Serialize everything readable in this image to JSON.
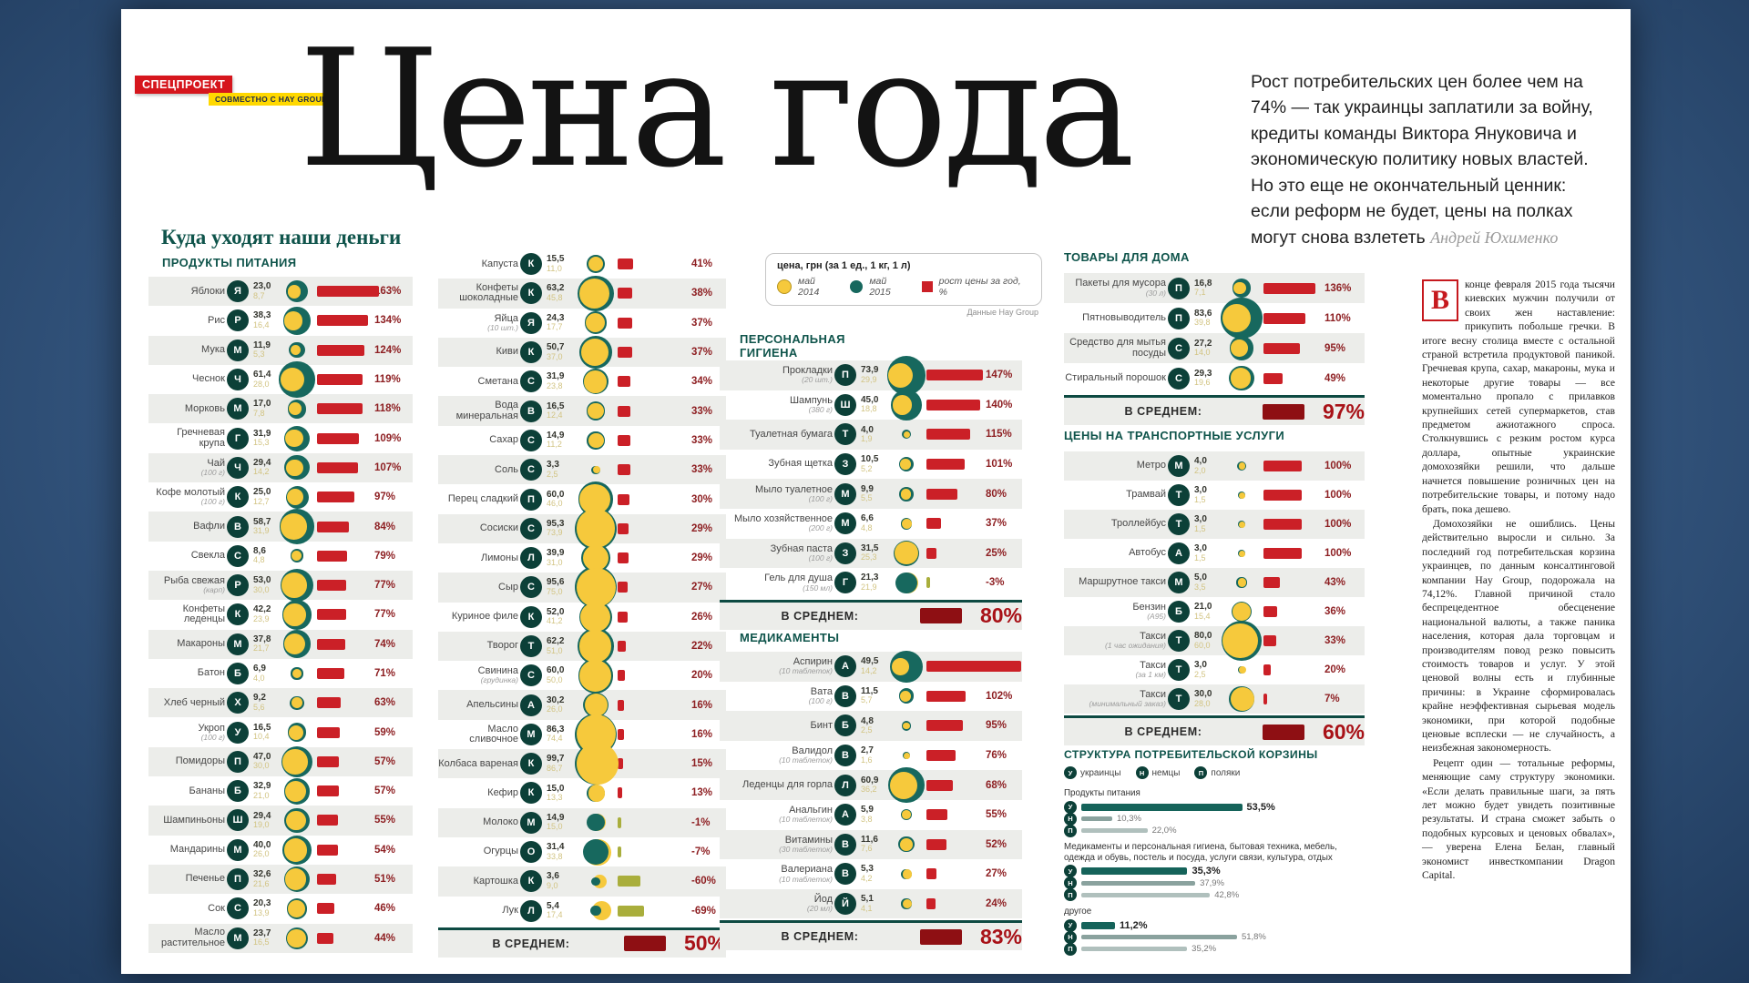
{
  "header": {
    "badge1": "СПЕЦПРОЕКТ",
    "badge2": "СОВМЕСТНО С HAY GROUP",
    "title": "Цена года"
  },
  "lead": {
    "text": "Рост потребительских цен более чем на 74% — так украинцы заплатили за войну, кредиты команды Виктора Януковича и экономическую политику новых властей. Но это еще не окончательный ценник: если реформ не будет, цены на полках могут снова взлететь",
    "byline": "Андрей Юхименко"
  },
  "main_heading": "Куда уходят наши деньги",
  "avg_label": "В СРЕДНЕМ:",
  "source_note": "Данные Hay Group",
  "legend": {
    "price_label": "цена, грн (за 1 ед., 1 кг, 1 л)",
    "may2014": "май 2014",
    "may2015": "май 2015",
    "growth": "рост цены за год, %"
  },
  "colors": {
    "accent_red": "#cb2027",
    "dark_red": "#8e0f13",
    "teal": "#17685e",
    "dark_teal": "#0c4038",
    "yellow": "#f6c93c",
    "olive_negative": "#a9ae3c",
    "heading_teal": "#0f544b"
  },
  "chart_data": [
    {
      "type": "bar",
      "title": "ПРОДУКТЫ ПИТАНИЯ",
      "unit": "грн",
      "series_labels": [
        "май 2014",
        "май 2015",
        "рост цены за год, %"
      ],
      "average_growth_pct": 50,
      "columns": [
        [
          {
            "name": "Яблоки",
            "note": "",
            "may2014": 8.7,
            "may2015": 23.0,
            "growth": 163
          },
          {
            "name": "Рис",
            "note": "",
            "may2014": 16.4,
            "may2015": 38.3,
            "growth": 134
          },
          {
            "name": "Мука",
            "note": "",
            "may2014": 5.3,
            "may2015": 11.9,
            "growth": 124
          },
          {
            "name": "Чеснок",
            "note": "",
            "may2014": 28.0,
            "may2015": 61.4,
            "growth": 119
          },
          {
            "name": "Морковь",
            "note": "",
            "may2014": 7.8,
            "may2015": 17.0,
            "growth": 118
          },
          {
            "name": "Гречневая крупа",
            "note": "",
            "may2014": 15.3,
            "may2015": 31.9,
            "growth": 109
          },
          {
            "name": "Чай",
            "note": "(100 г)",
            "may2014": 14.2,
            "may2015": 29.4,
            "growth": 107
          },
          {
            "name": "Кофе молотый",
            "note": "(100 г)",
            "may2014": 12.7,
            "may2015": 25.0,
            "growth": 97
          },
          {
            "name": "Вафли",
            "note": "",
            "may2014": 31.9,
            "may2015": 58.7,
            "growth": 84
          },
          {
            "name": "Свекла",
            "note": "",
            "may2014": 4.8,
            "may2015": 8.6,
            "growth": 79
          },
          {
            "name": "Рыба свежая",
            "note": "(карп)",
            "may2014": 30.0,
            "may2015": 53.0,
            "growth": 77
          },
          {
            "name": "Конфеты леденцы",
            "note": "",
            "may2014": 23.9,
            "may2015": 42.2,
            "growth": 77
          },
          {
            "name": "Макароны",
            "note": "",
            "may2014": 21.7,
            "may2015": 37.8,
            "growth": 74
          },
          {
            "name": "Батон",
            "note": "",
            "may2014": 4.0,
            "may2015": 6.9,
            "growth": 71
          },
          {
            "name": "Хлеб черный",
            "note": "",
            "may2014": 5.6,
            "may2015": 9.2,
            "growth": 63
          },
          {
            "name": "Укроп",
            "note": "(100 г)",
            "may2014": 10.4,
            "may2015": 16.5,
            "growth": 59
          },
          {
            "name": "Помидоры",
            "note": "",
            "may2014": 30.0,
            "may2015": 47.0,
            "growth": 57
          },
          {
            "name": "Бананы",
            "note": "",
            "may2014": 21.0,
            "may2015": 32.9,
            "growth": 57
          },
          {
            "name": "Шампиньоны",
            "note": "",
            "may2014": 19.0,
            "may2015": 29.4,
            "growth": 55
          },
          {
            "name": "Мандарины",
            "note": "",
            "may2014": 26.0,
            "may2015": 40.0,
            "growth": 54
          },
          {
            "name": "Печенье",
            "note": "",
            "may2014": 21.6,
            "may2015": 32.6,
            "growth": 51
          },
          {
            "name": "Сок",
            "note": "",
            "may2014": 13.9,
            "may2015": 20.3,
            "growth": 46
          },
          {
            "name": "Масло растительное",
            "note": "",
            "may2014": 16.5,
            "may2015": 23.7,
            "growth": 44
          }
        ],
        [
          {
            "name": "Капуста",
            "note": "",
            "may2014": 11.0,
            "may2015": 15.5,
            "growth": 41
          },
          {
            "name": "Конфеты шоколадные",
            "note": "",
            "may2014": 45.8,
            "may2015": 63.2,
            "growth": 38
          },
          {
            "name": "Яйца",
            "note": "(10 шт.)",
            "may2014": 17.7,
            "may2015": 24.3,
            "growth": 37
          },
          {
            "name": "Киви",
            "note": "",
            "may2014": 37.0,
            "may2015": 50.7,
            "growth": 37
          },
          {
            "name": "Сметана",
            "note": "",
            "may2014": 23.8,
            "may2015": 31.9,
            "growth": 34
          },
          {
            "name": "Вода минеральная",
            "note": "",
            "may2014": 12.4,
            "may2015": 16.5,
            "growth": 33
          },
          {
            "name": "Сахар",
            "note": "",
            "may2014": 11.2,
            "may2015": 14.9,
            "growth": 33
          },
          {
            "name": "Соль",
            "note": "",
            "may2014": 2.5,
            "may2015": 3.3,
            "growth": 33
          },
          {
            "name": "Перец сладкий",
            "note": "",
            "may2014": 46.0,
            "may2015": 60.0,
            "growth": 30
          },
          {
            "name": "Сосиски",
            "note": "",
            "may2014": 73.9,
            "may2015": 95.3,
            "growth": 29
          },
          {
            "name": "Лимоны",
            "note": "",
            "may2014": 31.0,
            "may2015": 39.9,
            "growth": 29
          },
          {
            "name": "Сыр",
            "note": "",
            "may2014": 75.0,
            "may2015": 95.6,
            "growth": 27
          },
          {
            "name": "Куриное филе",
            "note": "",
            "may2014": 41.2,
            "may2015": 52.0,
            "growth": 26
          },
          {
            "name": "Творог",
            "note": "",
            "may2014": 51.0,
            "may2015": 62.2,
            "growth": 22
          },
          {
            "name": "Свинина",
            "note": "(грудинка)",
            "may2014": 50.0,
            "may2015": 60.0,
            "growth": 20
          },
          {
            "name": "Апельсины",
            "note": "",
            "may2014": 26.0,
            "may2015": 30.2,
            "growth": 16
          },
          {
            "name": "Масло сливочное",
            "note": "",
            "may2014": 74.4,
            "may2015": 86.3,
            "growth": 16
          },
          {
            "name": "Колбаса вареная",
            "note": "",
            "may2014": 86.7,
            "may2015": 99.7,
            "growth": 15
          },
          {
            "name": "Кефир",
            "note": "",
            "may2014": 13.3,
            "may2015": 15.0,
            "growth": 13
          },
          {
            "name": "Молоко",
            "note": "",
            "may2014": 15.0,
            "may2015": 14.9,
            "growth": -1
          },
          {
            "name": "Огурцы",
            "note": "",
            "may2014": 33.8,
            "may2015": 31.4,
            "growth": -7
          },
          {
            "name": "Картошка",
            "note": "",
            "may2014": 9.0,
            "may2015": 3.6,
            "growth": -60
          },
          {
            "name": "Лук",
            "note": "",
            "may2014": 17.4,
            "may2015": 5.4,
            "growth": -69
          }
        ]
      ]
    },
    {
      "type": "bar",
      "title": "ПЕРСОНАЛЬНАЯ ГИГИЕНА",
      "average_growth_pct": 80,
      "items": [
        {
          "name": "Прокладки",
          "note": "(20 шт.)",
          "may2014": 29.9,
          "may2015": 73.9,
          "growth": 147
        },
        {
          "name": "Шампунь",
          "note": "(380 г)",
          "may2014": 18.8,
          "may2015": 45.0,
          "growth": 140
        },
        {
          "name": "Туалетная бумага",
          "note": "",
          "may2014": 1.9,
          "may2015": 4.0,
          "growth": 115
        },
        {
          "name": "Зубная щетка",
          "note": "",
          "may2014": 5.2,
          "may2015": 10.5,
          "growth": 101
        },
        {
          "name": "Мыло туалетное",
          "note": "(100 г)",
          "may2014": 5.5,
          "may2015": 9.9,
          "growth": 80
        },
        {
          "name": "Мыло хозяйственное",
          "note": "(200 г)",
          "may2014": 4.8,
          "may2015": 6.6,
          "growth": 37
        },
        {
          "name": "Зубная паста",
          "note": "(100 г)",
          "may2014": 25.3,
          "may2015": 31.5,
          "growth": 25
        },
        {
          "name": "Гель для душа",
          "note": "(150 мл)",
          "may2014": 21.9,
          "may2015": 21.3,
          "growth": -3
        }
      ]
    },
    {
      "type": "bar",
      "title": "МЕДИКАМЕНТЫ",
      "average_growth_pct": 83,
      "items": [
        {
          "name": "Аспирин",
          "note": "(10 таблеток)",
          "may2014": 14.2,
          "may2015": 49.5,
          "growth": 248
        },
        {
          "name": "Вата",
          "note": "(100 г)",
          "may2014": 5.7,
          "may2015": 11.5,
          "growth": 102
        },
        {
          "name": "Бинт",
          "note": "",
          "may2014": 2.5,
          "may2015": 4.8,
          "growth": 95
        },
        {
          "name": "Валидол",
          "note": "(10 таблеток)",
          "may2014": 1.6,
          "may2015": 2.7,
          "growth": 76
        },
        {
          "name": "Леденцы для горла",
          "note": "",
          "may2014": 36.2,
          "may2015": 60.9,
          "growth": 68
        },
        {
          "name": "Анальгин",
          "note": "(10 таблеток)",
          "may2014": 3.8,
          "may2015": 5.9,
          "growth": 55
        },
        {
          "name": "Витамины",
          "note": "(30 таблеток)",
          "may2014": 7.6,
          "may2015": 11.6,
          "growth": 52
        },
        {
          "name": "Валериана",
          "note": "(10 таблеток)",
          "may2014": 4.2,
          "may2015": 5.3,
          "growth": 27
        },
        {
          "name": "Йод",
          "note": "(20 мл)",
          "may2014": 4.1,
          "may2015": 5.1,
          "growth": 24
        }
      ]
    },
    {
      "type": "bar",
      "title": "ТОВАРЫ ДЛЯ ДОМА",
      "average_growth_pct": 97,
      "items": [
        {
          "name": "Пакеты для мусора",
          "note": "(30 л)",
          "may2014": 7.1,
          "may2015": 16.8,
          "growth": 136
        },
        {
          "name": "Пятновыводитель",
          "note": "",
          "may2014": 39.8,
          "may2015": 83.6,
          "growth": 110
        },
        {
          "name": "Средство для мытья посуды",
          "note": "",
          "may2014": 14.0,
          "may2015": 27.2,
          "growth": 95
        },
        {
          "name": "Стиральный порошок",
          "note": "",
          "may2014": 19.6,
          "may2015": 29.3,
          "growth": 49
        }
      ]
    },
    {
      "type": "bar",
      "title": "ЦЕНЫ НА ТРАНСПОРТНЫЕ УСЛУГИ",
      "average_growth_pct": 60,
      "items": [
        {
          "name": "Метро",
          "note": "",
          "may2014": 2.0,
          "may2015": 4.0,
          "growth": 100
        },
        {
          "name": "Трамвай",
          "note": "",
          "may2014": 1.5,
          "may2015": 3.0,
          "growth": 100
        },
        {
          "name": "Троллейбус",
          "note": "",
          "may2014": 1.5,
          "may2015": 3.0,
          "growth": 100
        },
        {
          "name": "Автобус",
          "note": "",
          "may2014": 1.5,
          "may2015": 3.0,
          "growth": 100
        },
        {
          "name": "Маршрутное такси",
          "note": "",
          "may2014": 3.5,
          "may2015": 5.0,
          "growth": 43
        },
        {
          "name": "Бензин",
          "note": "(А95)",
          "may2014": 15.4,
          "may2015": 21.0,
          "growth": 36
        },
        {
          "name": "Такси",
          "note": "(1 час ожидания)",
          "may2014": 60.0,
          "may2015": 80.0,
          "growth": 33
        },
        {
          "name": "Такси",
          "note": "(за 1 км)",
          "may2014": 2.5,
          "may2015": 3.0,
          "growth": 20
        },
        {
          "name": "Такси",
          "note": "(минимальный заказ)",
          "may2014": 28.0,
          "may2015": 30.0,
          "growth": 7
        }
      ]
    },
    {
      "type": "bar",
      "title": "СТРУКТУРА ПОТРЕБИТЕЛЬСКОЙ КОРЗИНЫ",
      "legend": [
        "украинцы",
        "немцы",
        "поляки"
      ],
      "groups": [
        {
          "label": "Продукты питания",
          "values": [
            53.5,
            10.3,
            22.0
          ]
        },
        {
          "label": "Медикаменты и персональная гигиена, бытовая техника, мебель, одежда и обувь, постель и посуда, услуги связи, культура, отдых",
          "values": [
            35.3,
            37.9,
            42.8
          ]
        },
        {
          "label": "другое",
          "values": [
            11.2,
            51.8,
            35.2
          ]
        }
      ]
    }
  ],
  "article": {
    "dropcap": "В",
    "paragraphs": [
      "конце февраля 2015 года тысячи киевских мужчин получили от своих жен наставление: прикупить побольше гречки. В итоге весну столица вместе с остальной страной встретила продуктовой паникой. Гречневая крупа, сахар, макароны, мука и некоторые другие товары — все моментально пропало с прилавков крупнейших сетей супермаркетов, став предметом ажиотажного спроса. Столкнувшись с резким ростом курса доллара, опытные украинские домохозяйки решили, что дальше начнется повышение розничных цен на потребительские товары, и потому надо брать, пока дешево.",
      "Домохозяйки не ошиблись. Цены действительно выросли и сильно. За последний год потребительская корзина украинцев, по данным консалтинговой компании Hay Group, подорожала на 74,12%. Главной причиной стало беспрецедентное обесценение национальной валюты, а также паника населения, которая дала торговцам и производителям повод резко повысить стоимость товаров и услуг. У этой ценовой волны есть и глубинные причины: в Украине сформировалась крайне неэффективная сырьевая модель экономики, при которой подобные ценовые всплески — не случайность, а неизбежная закономерность.",
      "Рецепт один — тотальные реформы, меняющие саму структуру экономики. «Если делать правильные шаги, за пять лет можно будет увидеть позитивные результаты. И страна сможет забыть о подобных курсовых и ценовых обвалах», — уверена Елена Белан, главный экономист инвесткомпании Dragon Capital."
    ]
  }
}
